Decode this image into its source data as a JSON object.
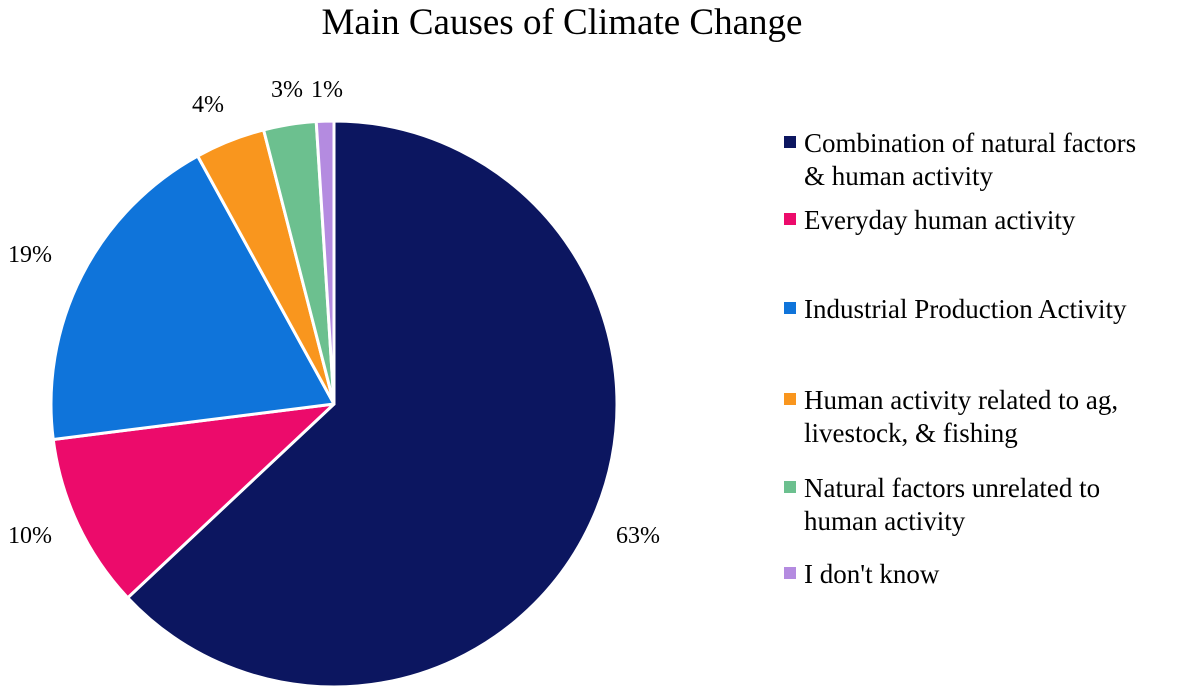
{
  "chart_data": {
    "type": "pie",
    "title": "Main Causes of Climate Change",
    "categories": [
      "Combination of natural factors & human activity",
      "Everyday human activity",
      "Industrial Production Activity",
      "Human activity related to ag, livestock, & fishing",
      "Natural factors unrelated to human activity",
      "I don't know"
    ],
    "legend_lines": [
      [
        "Combination of natural factors",
        "& human activity"
      ],
      [
        "Everyday human activity"
      ],
      [
        "Industrial Production Activity"
      ],
      [
        "Human activity related to ag,",
        "livestock, & fishing"
      ],
      [
        "Natural factors unrelated to",
        "human activity"
      ],
      [
        "I don't know"
      ]
    ],
    "values": [
      63,
      10,
      19,
      4,
      3,
      1
    ],
    "data_labels": [
      "63%",
      "10%",
      "19%",
      "4%",
      "3%",
      "1%"
    ],
    "colors": [
      "#0c1660",
      "#ec0b6b",
      "#0f74da",
      "#f9961e",
      "#6cc08f",
      "#b48be0"
    ],
    "legend_position": "right",
    "start_angle_deg": 0,
    "direction": "clockwise"
  }
}
